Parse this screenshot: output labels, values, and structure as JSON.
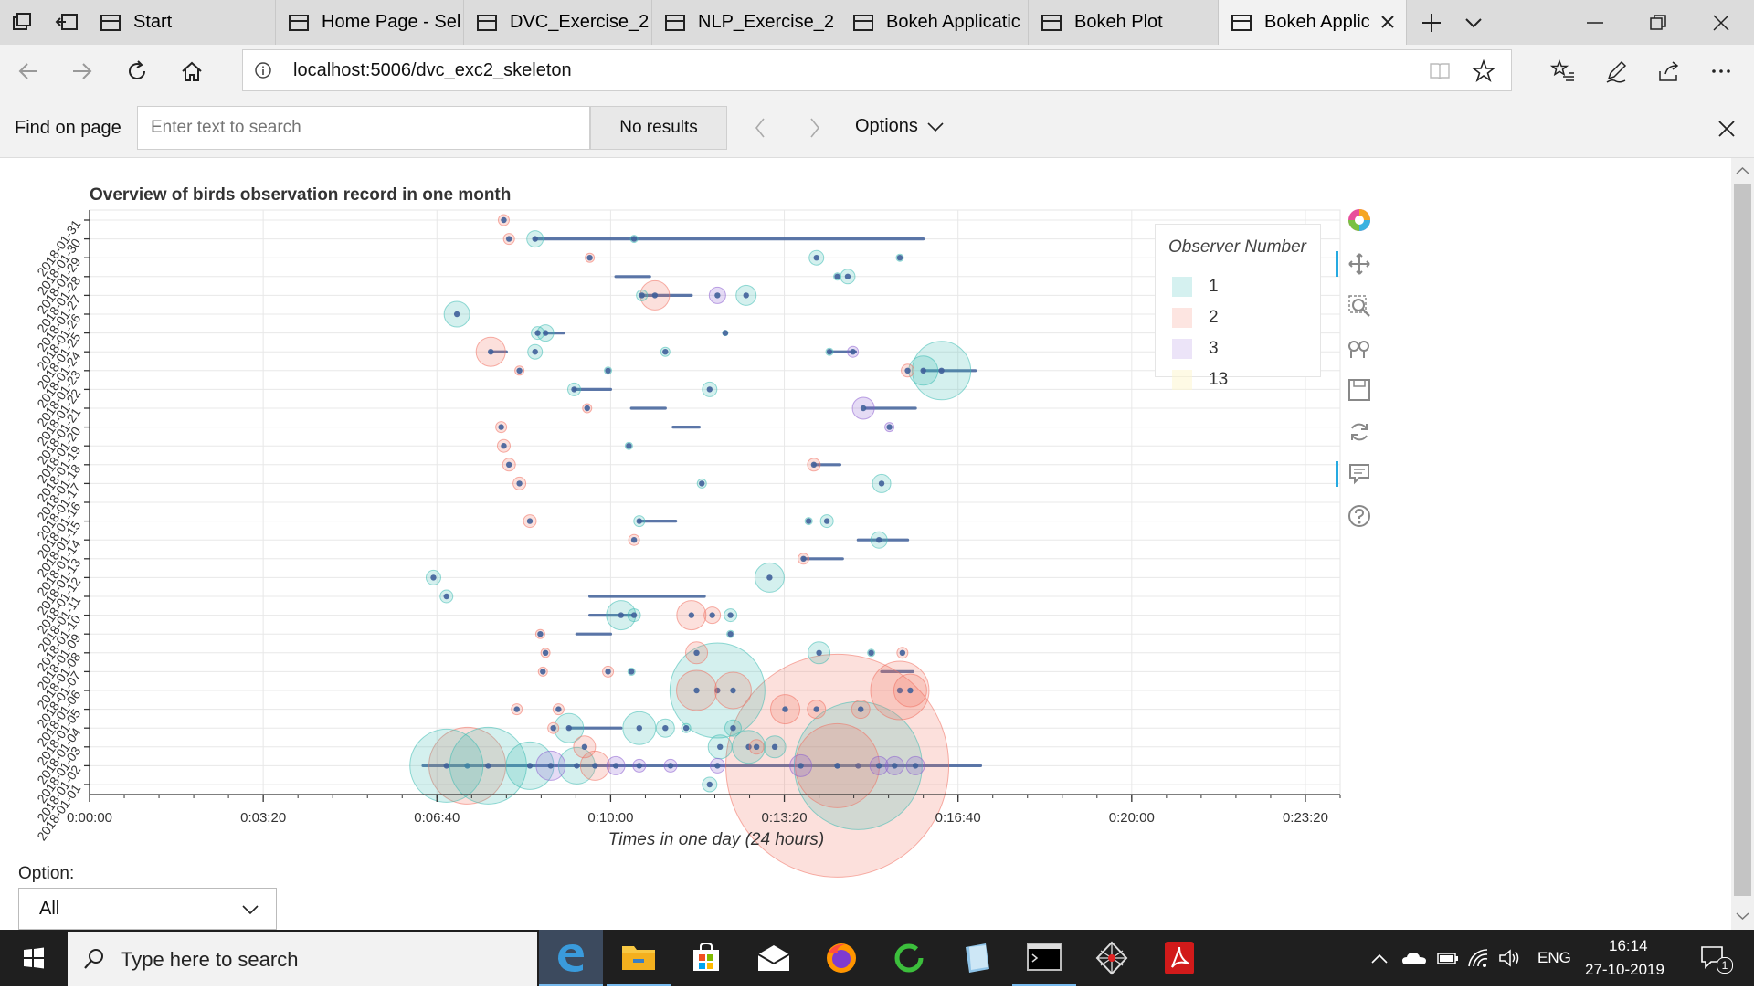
{
  "browser": {
    "tabs": [
      {
        "label": "Start"
      },
      {
        "label": "Home Page - Sel"
      },
      {
        "label": "DVC_Exercise_2 -"
      },
      {
        "label": "NLP_Exercise_2 -"
      },
      {
        "label": "Bokeh Applicatic"
      },
      {
        "label": "Bokeh Plot"
      },
      {
        "label": "Bokeh Applic"
      }
    ],
    "url": "localhost:5006/dvc_exc2_skeleton",
    "find": {
      "label": "Find on page",
      "placeholder": "Enter text to search",
      "results": "No results",
      "options": "Options"
    }
  },
  "chart_data": {
    "type": "scatter",
    "title": "Overview of birds observation record in one month",
    "xlabel": "Times in one day (24 hours)",
    "x_ticks": [
      "0:00:00",
      "0:03:20",
      "0:06:40",
      "0:10:00",
      "0:13:20",
      "0:16:40",
      "0:20:00",
      "0:23:20"
    ],
    "y_ticks": [
      "2018-01-01",
      "2018-01-02",
      "2018-01-03",
      "2018-01-04",
      "2018-01-05",
      "2018-01-06",
      "2018-01-07",
      "2018-01-08",
      "2018-01-09",
      "2018-01-10",
      "2018-01-11",
      "2018-01-12",
      "2018-01-13",
      "2018-01-14",
      "2018-01-15",
      "2018-01-16",
      "2018-01-17",
      "2018-01-18",
      "2018-01-19",
      "2018-01-20",
      "2018-01-21",
      "2018-01-22",
      "2018-01-23",
      "2018-01-24",
      "2018-01-25",
      "2018-01-26",
      "2018-01-27",
      "2018-01-28",
      "2018-01-29",
      "2018-01-30",
      "2018-01-31"
    ],
    "legend": {
      "title": "Observer Number",
      "placement": "top-right",
      "entries": [
        {
          "label": "1",
          "color": "#b2e6e3"
        },
        {
          "label": "2",
          "color": "#fbd0c8"
        },
        {
          "label": "3",
          "color": "#dccdf2"
        },
        {
          "label": "13",
          "color": "#fdf5cf"
        }
      ]
    },
    "colors": {
      "1": "#3dbbb3",
      "2": "#f07060",
      "3": "#8a5cd0",
      "13": "#f3da6a",
      "segment": "#40609a"
    },
    "segments": [
      {
        "date": 30,
        "x1": 8.55,
        "x2": 16.0
      },
      {
        "date": 28,
        "x1": 10.1,
        "x2": 10.75
      },
      {
        "date": 27,
        "x1": 10.6,
        "x2": 11.55
      },
      {
        "date": 25,
        "x1": 8.75,
        "x2": 9.1
      },
      {
        "date": 24,
        "x1": 7.7,
        "x2": 8.0
      },
      {
        "date": 24,
        "x1": 14.2,
        "x2": 14.7
      },
      {
        "date": 23,
        "x1": 16.0,
        "x2": 17.0
      },
      {
        "date": 22,
        "x1": 9.3,
        "x2": 10.0
      },
      {
        "date": 21,
        "x1": 10.4,
        "x2": 11.05
      },
      {
        "date": 21,
        "x1": 14.9,
        "x2": 15.85
      },
      {
        "date": 20,
        "x1": 11.2,
        "x2": 11.7
      },
      {
        "date": 18,
        "x1": 13.9,
        "x2": 14.4
      },
      {
        "date": 15,
        "x1": 10.55,
        "x2": 11.25
      },
      {
        "date": 14,
        "x1": 14.75,
        "x2": 15.7
      },
      {
        "date": 13,
        "x1": 13.7,
        "x2": 14.45
      },
      {
        "date": 11,
        "x1": 9.6,
        "x2": 11.8
      },
      {
        "date": 10,
        "x1": 9.6,
        "x2": 10.4
      },
      {
        "date": 9,
        "x1": 9.35,
        "x2": 10.0
      },
      {
        "date": 7,
        "x1": 15.2,
        "x2": 15.8
      },
      {
        "date": 4,
        "x1": 9.2,
        "x2": 10.2
      },
      {
        "date": 2,
        "x1": 6.4,
        "x2": 17.1
      }
    ],
    "points": [
      {
        "date": 31,
        "x": 7.95,
        "obs": 2,
        "size": 4
      },
      {
        "date": 30,
        "x": 8.05,
        "obs": 2,
        "size": 4
      },
      {
        "date": 30,
        "x": 8.55,
        "obs": 1,
        "size": 7
      },
      {
        "date": 30,
        "x": 10.45,
        "obs": 1,
        "size": 2
      },
      {
        "date": 29,
        "x": 9.6,
        "obs": 2,
        "size": 3
      },
      {
        "date": 29,
        "x": 13.95,
        "obs": 1,
        "size": 6
      },
      {
        "date": 29,
        "x": 15.55,
        "obs": 1,
        "size": 2
      },
      {
        "date": 28,
        "x": 14.55,
        "obs": 1,
        "size": 6
      },
      {
        "date": 28,
        "x": 14.35,
        "obs": 1,
        "size": 2
      },
      {
        "date": 27,
        "x": 10.6,
        "obs": 1,
        "size": 4
      },
      {
        "date": 27,
        "x": 10.85,
        "obs": 2,
        "size": 14
      },
      {
        "date": 27,
        "x": 12.05,
        "obs": 3,
        "size": 7
      },
      {
        "date": 27,
        "x": 12.6,
        "obs": 1,
        "size": 9
      },
      {
        "date": 26,
        "x": 7.05,
        "obs": 1,
        "size": 12
      },
      {
        "date": 25,
        "x": 8.75,
        "obs": 1,
        "size": 7
      },
      {
        "date": 25,
        "x": 8.6,
        "obs": 1,
        "size": 5
      },
      {
        "date": 25,
        "x": 12.2,
        "obs": 1,
        "size": 1
      },
      {
        "date": 24,
        "x": 7.7,
        "obs": 2,
        "size": 14
      },
      {
        "date": 24,
        "x": 8.55,
        "obs": 1,
        "size": 6
      },
      {
        "date": 24,
        "x": 11.05,
        "obs": 1,
        "size": 3
      },
      {
        "date": 24,
        "x": 14.2,
        "obs": 1,
        "size": 2
      },
      {
        "date": 24,
        "x": 14.65,
        "obs": 3,
        "size": 4
      },
      {
        "date": 23,
        "x": 8.25,
        "obs": 2,
        "size": 3
      },
      {
        "date": 23,
        "x": 9.95,
        "obs": 1,
        "size": 2
      },
      {
        "date": 23,
        "x": 15.7,
        "obs": 2,
        "size": 5
      },
      {
        "date": 23,
        "x": 16.0,
        "obs": 1,
        "size": 14
      },
      {
        "date": 23,
        "x": 16.35,
        "obs": 1,
        "size": 30
      },
      {
        "date": 22,
        "x": 9.3,
        "obs": 1,
        "size": 5
      },
      {
        "date": 22,
        "x": 11.9,
        "obs": 1,
        "size": 6
      },
      {
        "date": 21,
        "x": 9.55,
        "obs": 2,
        "size": 3
      },
      {
        "date": 21,
        "x": 14.85,
        "obs": 3,
        "size": 10
      },
      {
        "date": 20,
        "x": 7.9,
        "obs": 2,
        "size": 4
      },
      {
        "date": 20,
        "x": 15.35,
        "obs": 3,
        "size": 3
      },
      {
        "date": 19,
        "x": 7.95,
        "obs": 2,
        "size": 5
      },
      {
        "date": 19,
        "x": 10.35,
        "obs": 1,
        "size": 2
      },
      {
        "date": 18,
        "x": 8.05,
        "obs": 2,
        "size": 5
      },
      {
        "date": 18,
        "x": 13.9,
        "obs": 2,
        "size": 5
      },
      {
        "date": 17,
        "x": 8.25,
        "obs": 2,
        "size": 5
      },
      {
        "date": 17,
        "x": 11.75,
        "obs": 1,
        "size": 3
      },
      {
        "date": 17,
        "x": 15.2,
        "obs": 1,
        "size": 8
      },
      {
        "date": 15,
        "x": 8.45,
        "obs": 2,
        "size": 5
      },
      {
        "date": 15,
        "x": 10.55,
        "obs": 1,
        "size": 4
      },
      {
        "date": 15,
        "x": 13.8,
        "obs": 1,
        "size": 2
      },
      {
        "date": 15,
        "x": 14.15,
        "obs": 1,
        "size": 5
      },
      {
        "date": 14,
        "x": 10.45,
        "obs": 2,
        "size": 4
      },
      {
        "date": 14,
        "x": 15.15,
        "obs": 1,
        "size": 7
      },
      {
        "date": 13,
        "x": 13.7,
        "obs": 2,
        "size": 4
      },
      {
        "date": 12,
        "x": 6.6,
        "obs": 1,
        "size": 6
      },
      {
        "date": 12,
        "x": 13.05,
        "obs": 1,
        "size": 14
      },
      {
        "date": 11,
        "x": 6.85,
        "obs": 1,
        "size": 5
      },
      {
        "date": 10,
        "x": 10.2,
        "obs": 1,
        "size": 14
      },
      {
        "date": 10,
        "x": 10.45,
        "obs": 1,
        "size": 5
      },
      {
        "date": 10,
        "x": 11.55,
        "obs": 2,
        "size": 14
      },
      {
        "date": 10,
        "x": 11.95,
        "obs": 2,
        "size": 7
      },
      {
        "date": 10,
        "x": 12.3,
        "obs": 1,
        "size": 5
      },
      {
        "date": 9,
        "x": 8.65,
        "obs": 2,
        "size": 3
      },
      {
        "date": 9,
        "x": 12.3,
        "obs": 1,
        "size": 2
      },
      {
        "date": 8,
        "x": 8.75,
        "obs": 2,
        "size": 3
      },
      {
        "date": 8,
        "x": 11.65,
        "obs": 2,
        "size": 10
      },
      {
        "date": 8,
        "x": 14.0,
        "obs": 1,
        "size": 10
      },
      {
        "date": 8,
        "x": 15.0,
        "obs": 1,
        "size": 2
      },
      {
        "date": 8,
        "x": 15.6,
        "obs": 2,
        "size": 4
      },
      {
        "date": 7,
        "x": 8.7,
        "obs": 2,
        "size": 3
      },
      {
        "date": 7,
        "x": 9.95,
        "obs": 2,
        "size": 4
      },
      {
        "date": 7,
        "x": 10.4,
        "obs": 1,
        "size": 2
      },
      {
        "date": 6,
        "x": 11.65,
        "obs": 2,
        "size": 20
      },
      {
        "date": 6,
        "x": 12.05,
        "obs": 1,
        "size": 50
      },
      {
        "date": 6,
        "x": 12.35,
        "obs": 2,
        "size": 18
      },
      {
        "date": 6,
        "x": 15.55,
        "obs": 2,
        "size": 30
      },
      {
        "date": 6,
        "x": 15.75,
        "obs": 2,
        "size": 16
      },
      {
        "date": 5,
        "x": 9.0,
        "obs": 2,
        "size": 4
      },
      {
        "date": 5,
        "x": 8.2,
        "obs": 2,
        "size": 4
      },
      {
        "date": 5,
        "x": 13.35,
        "obs": 2,
        "size": 14
      },
      {
        "date": 5,
        "x": 13.95,
        "obs": 2,
        "size": 8
      },
      {
        "date": 5,
        "x": 14.8,
        "obs": 2,
        "size": 8
      },
      {
        "date": 4,
        "x": 9.2,
        "obs": 1,
        "size": 14
      },
      {
        "date": 4,
        "x": 10.55,
        "obs": 1,
        "size": 16
      },
      {
        "date": 4,
        "x": 11.05,
        "obs": 1,
        "size": 8
      },
      {
        "date": 4,
        "x": 11.45,
        "obs": 1,
        "size": 3
      },
      {
        "date": 4,
        "x": 12.35,
        "obs": 1,
        "size": 7
      },
      {
        "date": 4,
        "x": 8.9,
        "obs": 2,
        "size": 4
      },
      {
        "date": 3,
        "x": 9.5,
        "obs": 2,
        "size": 10
      },
      {
        "date": 3,
        "x": 12.1,
        "obs": 1,
        "size": 11
      },
      {
        "date": 3,
        "x": 12.65,
        "obs": 1,
        "size": 16
      },
      {
        "date": 3,
        "x": 12.8,
        "obs": 2,
        "size": 6
      },
      {
        "date": 3,
        "x": 13.15,
        "obs": 1,
        "size": 10
      },
      {
        "date": 2,
        "x": 6.85,
        "obs": 1,
        "size": 38
      },
      {
        "date": 2,
        "x": 7.25,
        "obs": 2,
        "size": 40
      },
      {
        "date": 2,
        "x": 7.65,
        "obs": 1,
        "size": 40
      },
      {
        "date": 2,
        "x": 8.45,
        "obs": 1,
        "size": 24
      },
      {
        "date": 2,
        "x": 8.85,
        "obs": 3,
        "size": 14
      },
      {
        "date": 2,
        "x": 9.35,
        "obs": 1,
        "size": 18
      },
      {
        "date": 2,
        "x": 9.7,
        "obs": 2,
        "size": 14
      },
      {
        "date": 2,
        "x": 10.1,
        "obs": 3,
        "size": 8
      },
      {
        "date": 2,
        "x": 10.55,
        "obs": 3,
        "size": 5
      },
      {
        "date": 2,
        "x": 11.15,
        "obs": 3,
        "size": 5
      },
      {
        "date": 2,
        "x": 12.05,
        "obs": 3,
        "size": 6
      },
      {
        "date": 2,
        "x": 13.65,
        "obs": 3,
        "size": 10
      },
      {
        "date": 2,
        "x": 14.35,
        "obs": 2,
        "size": 120
      },
      {
        "date": 2,
        "x": 14.35,
        "obs": 2,
        "size": 44
      },
      {
        "date": 2,
        "x": 14.75,
        "obs": 1,
        "size": 68
      },
      {
        "date": 2,
        "x": 15.15,
        "obs": 3,
        "size": 8
      },
      {
        "date": 2,
        "x": 15.45,
        "obs": 3,
        "size": 8
      },
      {
        "date": 2,
        "x": 15.85,
        "obs": 3,
        "size": 8
      },
      {
        "date": 1,
        "x": 11.9,
        "obs": 1,
        "size": 6
      }
    ]
  },
  "page": {
    "option_label": "Option:",
    "option_value": "All"
  },
  "taskbar": {
    "search_placeholder": "Type here to search",
    "lang": "ENG",
    "time": "16:14",
    "date": "27-10-2019",
    "notification_count": "1"
  }
}
